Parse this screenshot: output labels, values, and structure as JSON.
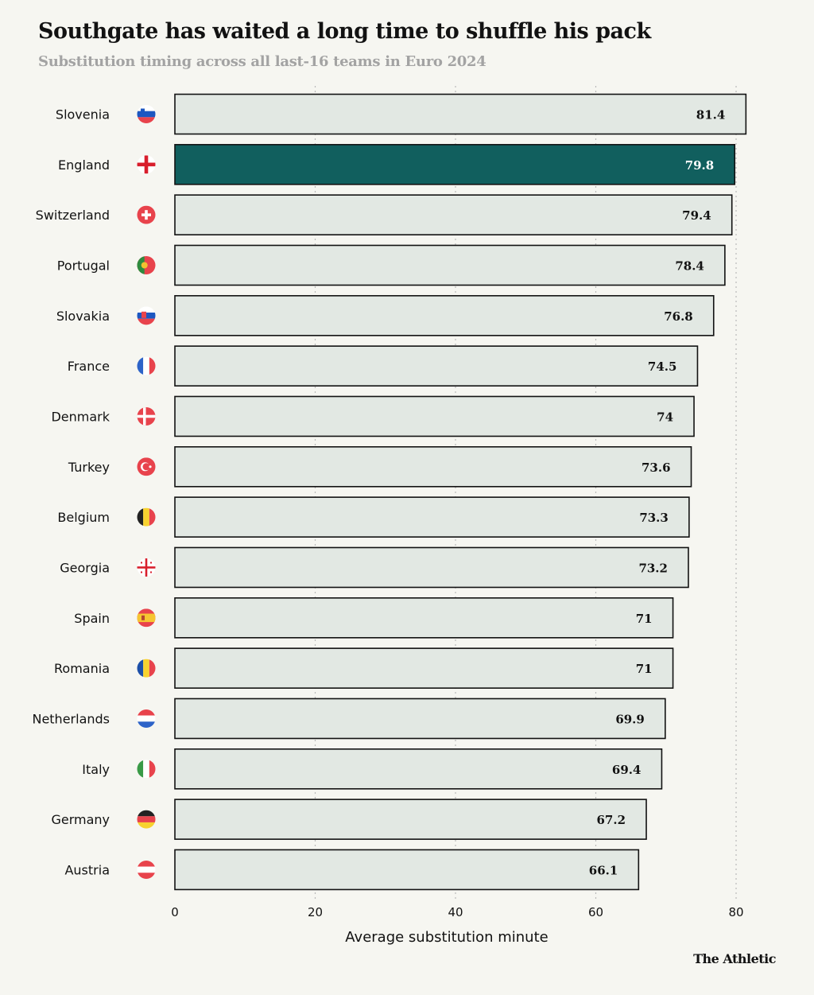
{
  "header": {
    "title": "Southgate has waited a long time to shuffle his pack",
    "subtitle": "Substitution timing across all last-16 teams in Euro 2024"
  },
  "footer": {
    "brand": "The Athletic"
  },
  "colors": {
    "bar_fill": "#e2e8e3",
    "bar_highlight": "#115f5e",
    "bar_stroke": "#121212",
    "grid": "#b9b9b9",
    "text": "#121212",
    "subtitle": "#a3a3a3",
    "background": "#f6f6f1"
  },
  "chart_data": {
    "type": "bar",
    "orientation": "horizontal",
    "title": "Southgate has waited a long time to shuffle his pack",
    "subtitle": "Substitution timing across all last-16 teams in Euro 2024",
    "xlabel": "Average substitution minute",
    "xlim": [
      0,
      80
    ],
    "xticks": [
      0,
      20,
      40,
      60,
      80
    ],
    "grid": "vertical dotted",
    "highlight": "England",
    "categories": [
      "Slovenia",
      "England",
      "Switzerland",
      "Portugal",
      "Slovakia",
      "France",
      "Denmark",
      "Turkey",
      "Belgium",
      "Georgia",
      "Spain",
      "Romania",
      "Netherlands",
      "Italy",
      "Germany",
      "Austria"
    ],
    "values": [
      81.4,
      79.8,
      79.4,
      78.4,
      76.8,
      74.5,
      74,
      73.6,
      73.3,
      73.2,
      71,
      71,
      69.9,
      69.4,
      67.2,
      66.1
    ],
    "value_labels": [
      "81.4",
      "79.8",
      "79.4",
      "78.4",
      "76.8",
      "74.5",
      "74",
      "73.6",
      "73.3",
      "73.2",
      "71",
      "71",
      "69.9",
      "69.4",
      "67.2",
      "66.1"
    ],
    "flag_icons": [
      "slovenia-flag-icon",
      "england-flag-icon",
      "switzerland-flag-icon",
      "portugal-flag-icon",
      "slovakia-flag-icon",
      "france-flag-icon",
      "denmark-flag-icon",
      "turkey-flag-icon",
      "belgium-flag-icon",
      "georgia-flag-icon",
      "spain-flag-icon",
      "romania-flag-icon",
      "netherlands-flag-icon",
      "italy-flag-icon",
      "germany-flag-icon",
      "austria-flag-icon"
    ]
  }
}
